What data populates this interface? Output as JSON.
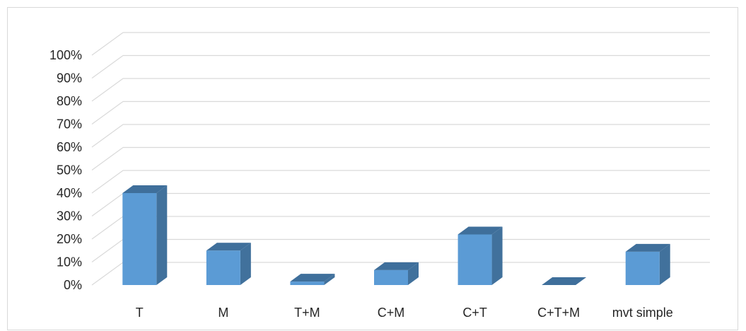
{
  "chart_data": {
    "type": "bar",
    "style": "3d-column",
    "title": "",
    "xlabel": "",
    "ylabel": "",
    "categories": [
      "T",
      "M",
      "T+M",
      "C+M",
      "C+T",
      "C+T+M",
      "mvt simple"
    ],
    "values": [
      40,
      15,
      1.5,
      6.5,
      22,
      0,
      14.5
    ],
    "value_unit": "%",
    "ylim": [
      0,
      100
    ],
    "y_tick_step": 10,
    "y_tick_labels": [
      "0%",
      "10%",
      "20%",
      "30%",
      "40%",
      "50%",
      "60%",
      "70%",
      "80%",
      "90%",
      "100%"
    ],
    "grid": true,
    "legend": "none",
    "colors": {
      "bar_front": "#5b9bd5",
      "bar_side": "#41719c",
      "bar_top": "#3f6f9b",
      "gridline": "#d9d9d9",
      "text": "#262626"
    }
  }
}
